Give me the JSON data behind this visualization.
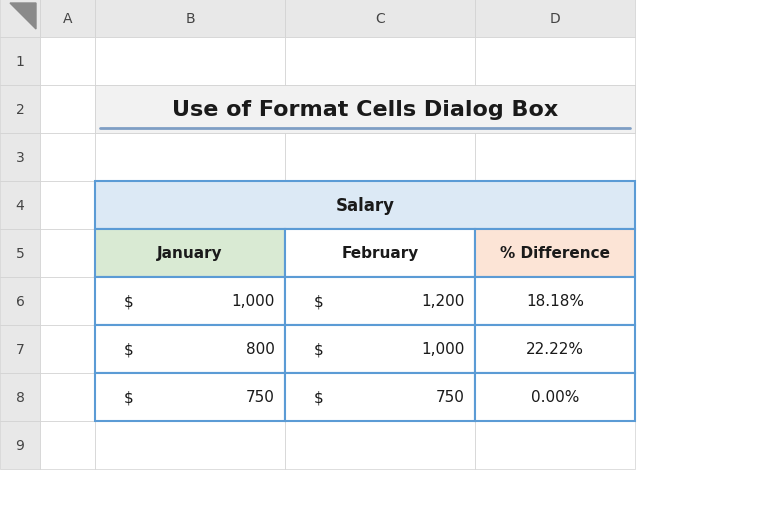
{
  "title": "Use of Format Cells Dialog Box",
  "title_fontsize": 16,
  "title_color": "#1a1a1a",
  "title_underline_color": "#7f9ec4",
  "table_header_main": "Salary",
  "table_header_main_bg": "#dce9f5",
  "table_col_headers": [
    "January",
    "February",
    "% Difference"
  ],
  "table_col_header_bg": [
    "#d9ead3",
    "#ffffff",
    "#fce4d6"
  ],
  "table_data": [
    [
      "$",
      "1,000",
      "$",
      "1,200",
      "18.18%"
    ],
    [
      "$",
      "800",
      "$",
      "1,000",
      "22.22%"
    ],
    [
      "$",
      "750",
      "$",
      "750",
      "0.00%"
    ]
  ],
  "table_border_color": "#5b9bd5",
  "row_labels": [
    "1",
    "2",
    "3",
    "4",
    "5",
    "6",
    "7",
    "8",
    "9"
  ],
  "col_labels": [
    "A",
    "B",
    "C",
    "D"
  ],
  "spreadsheet_bg": "#ffffff",
  "header_bg": "#e8e8e8",
  "grid_color": "#d0d0d0",
  "fig_width": 7.67,
  "fig_height": 5.1,
  "dpi": 100
}
